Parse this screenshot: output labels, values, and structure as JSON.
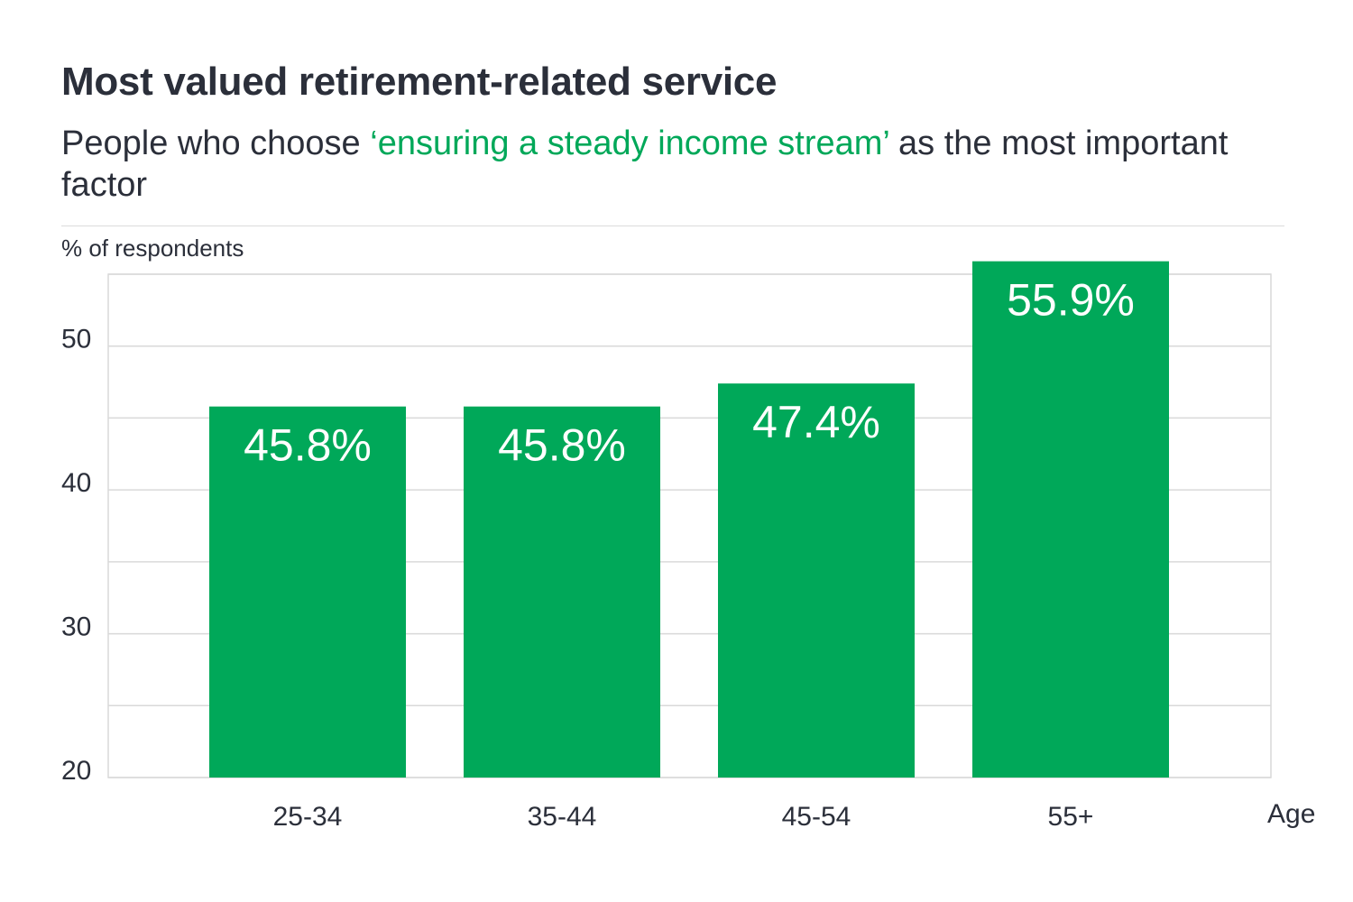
{
  "title": "Most valued retirement-related service",
  "subtitle": {
    "before": "People who choose ",
    "highlight": "‘ensuring a steady income stream’",
    "after": " as the most important factor"
  },
  "colors": {
    "bar": "#00a859",
    "highlight": "#00a859",
    "text": "#2b2f3a",
    "grid": "#d9d9d9"
  },
  "chart_data": {
    "type": "bar",
    "ylabel": "% of respondents",
    "xlabel": "Age",
    "categories": [
      "25-34",
      "35-44",
      "45-54",
      "55+"
    ],
    "values": [
      45.8,
      45.8,
      47.4,
      55.9
    ],
    "value_labels": [
      "45.8%",
      "45.8%",
      "47.4%",
      "55.9%"
    ],
    "ylim": [
      20,
      55
    ],
    "yticks": [
      20,
      30,
      40,
      50
    ],
    "grid": true,
    "legend": "none"
  }
}
